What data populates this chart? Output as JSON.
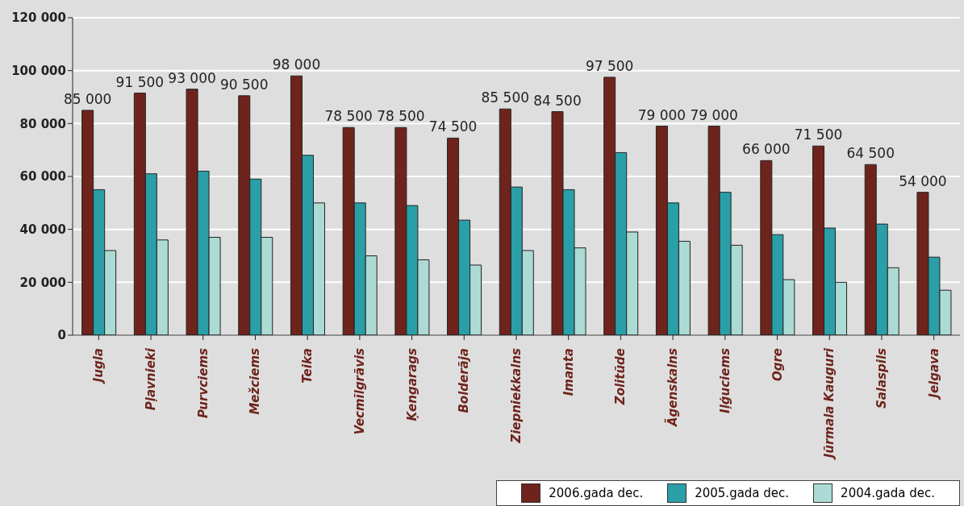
{
  "chart_data": {
    "type": "bar",
    "categories": [
      "Jugla",
      "Pļavnieki",
      "Purvciems",
      "Mežciems",
      "Teika",
      "Vecmīlgrāvis",
      "Ķengarags",
      "Bolderāja",
      "Ziepniekkalns",
      "Imanta",
      "Zolitūde",
      "Āgenskalns",
      "Iļģuciems",
      "Ogre",
      "Jūrmala Kauguri",
      "Salaspils",
      "Jelgava"
    ],
    "series": [
      {
        "name": "2006.gada dec.",
        "color": "#6e241c",
        "values": [
          85000,
          91500,
          93000,
          90500,
          98000,
          78500,
          78500,
          74500,
          85500,
          84500,
          97500,
          79000,
          79000,
          66000,
          71500,
          64500,
          54000
        ],
        "value_labels": [
          "85 000",
          "91 500",
          "93 000",
          "90 500",
          "98 000",
          "78 500",
          "78 500",
          "74 500",
          "85 500",
          "84 500",
          "97 500",
          "79 000",
          "79 000",
          "66 000",
          "71 500",
          "64 500",
          "54 000"
        ]
      },
      {
        "name": "2005.gada dec.",
        "color": "#2a9fa8",
        "values": [
          55000,
          61000,
          62000,
          59000,
          68000,
          50000,
          49000,
          43500,
          56000,
          55000,
          69000,
          50000,
          54000,
          38000,
          40500,
          42000,
          29500
        ]
      },
      {
        "name": "2004.gada dec.",
        "color": "#acdad4",
        "values": [
          32000,
          36000,
          37000,
          37000,
          50000,
          30000,
          28500,
          26500,
          32000,
          33000,
          39000,
          35500,
          34000,
          21000,
          20000,
          25500,
          17000
        ]
      }
    ],
    "ylim": [
      0,
      120000
    ],
    "yticks": [
      {
        "value": 0,
        "label": "0"
      },
      {
        "value": 20000,
        "label": "20 000"
      },
      {
        "value": 40000,
        "label": "40 000"
      },
      {
        "value": 60000,
        "label": "60 000"
      },
      {
        "value": 80000,
        "label": "80 000"
      },
      {
        "value": 100000,
        "label": "100 000"
      },
      {
        "value": 120000,
        "label": "120 000"
      }
    ],
    "grid": "y",
    "legend": "bottom right"
  }
}
